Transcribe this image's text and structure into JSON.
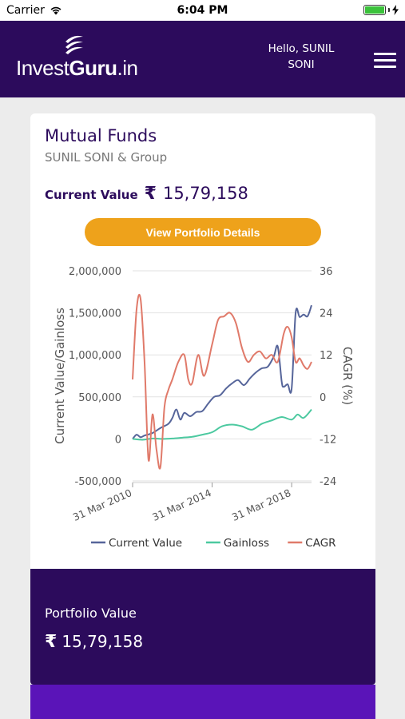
{
  "status_bar": {
    "carrier": "Carrier",
    "time": "6:04 PM",
    "wifi_icon": "wifi-icon",
    "battery_icon": "battery-icon",
    "battery_level": 1.0
  },
  "header": {
    "logo_light": "Invest",
    "logo_bold": "Guru",
    "logo_suffix": ".in",
    "greeting_line1": "Hello, SUNIL",
    "greeting_line2": "SONI",
    "menu_icon": "hamburger-menu-icon"
  },
  "card": {
    "title": "Mutual Funds",
    "subtitle": "SUNIL SONI & Group",
    "current_value_label": "Current Value",
    "currency_symbol": "₹",
    "current_value": "15,79,158",
    "button_label": "View Portfolio Details"
  },
  "portfolio": {
    "label": "Portfolio Value",
    "currency_symbol": "₹",
    "value": "15,79,158"
  },
  "colors": {
    "brand_purple": "#2c0b5c",
    "accent_orange": "#eea21b",
    "current_value": "#56659a",
    "gainloss": "#4cc9a0",
    "cagr": "#e07a6a"
  },
  "chart_data": {
    "type": "line",
    "ylabel": "Current Value/Gainloss",
    "y2label": "CAGR (%)",
    "ylim": [
      -500000,
      2000000
    ],
    "y2lim": [
      -24,
      36
    ],
    "yticks": [
      "2,000,000",
      "1,500,000",
      "1,000,000",
      "500,000",
      "0",
      "-500,000"
    ],
    "y2ticks": [
      "36",
      "24",
      "12",
      "0",
      "-12",
      "-24"
    ],
    "xlim": [
      2010.0,
      2019.0
    ],
    "xticks": [
      {
        "value": 2010.0,
        "label": "31 Mar 2010"
      },
      {
        "value": 2014.0,
        "label": "31 Mar 2014"
      },
      {
        "value": 2018.0,
        "label": "31 Mar 2018"
      }
    ],
    "grid": true,
    "legend_position": "bottom",
    "series": [
      {
        "name": "Current Value",
        "axis": "left",
        "color": "#56659a",
        "x": [
          2010.0,
          2010.2,
          2010.4,
          2010.6,
          2011.0,
          2011.4,
          2011.8,
          2012.0,
          2012.2,
          2012.4,
          2012.6,
          2012.9,
          2013.2,
          2013.5,
          2013.8,
          2014.1,
          2014.4,
          2014.7,
          2015.0,
          2015.3,
          2015.6,
          2015.9,
          2016.2,
          2016.5,
          2016.8,
          2017.1,
          2017.3,
          2017.5,
          2017.6,
          2017.8,
          2018.0,
          2018.2,
          2018.4,
          2018.6,
          2018.8,
          2019.0
        ],
        "y": [
          0,
          50000,
          20000,
          40000,
          70000,
          130000,
          180000,
          250000,
          350000,
          230000,
          310000,
          270000,
          320000,
          330000,
          420000,
          500000,
          520000,
          600000,
          660000,
          700000,
          640000,
          720000,
          790000,
          840000,
          860000,
          980000,
          1100000,
          680000,
          620000,
          650000,
          600000,
          1500000,
          1450000,
          1480000,
          1460000,
          1590000
        ]
      },
      {
        "name": "Gainloss",
        "axis": "left",
        "color": "#4cc9a0",
        "x": [
          2010.0,
          2010.5,
          2011.0,
          2011.5,
          2012.0,
          2012.5,
          2013.0,
          2013.5,
          2014.0,
          2014.5,
          2015.0,
          2015.5,
          2016.0,
          2016.5,
          2017.0,
          2017.5,
          2018.0,
          2018.3,
          2018.6,
          2019.0
        ],
        "y": [
          0,
          -10000,
          5000,
          0,
          5000,
          15000,
          25000,
          50000,
          80000,
          150000,
          170000,
          150000,
          110000,
          180000,
          220000,
          260000,
          230000,
          290000,
          250000,
          350000
        ]
      },
      {
        "name": "CAGR",
        "axis": "right",
        "color": "#e07a6a",
        "x": [
          2010.0,
          2010.2,
          2010.4,
          2010.6,
          2010.8,
          2011.0,
          2011.2,
          2011.4,
          2011.6,
          2011.8,
          2012.0,
          2012.3,
          2012.6,
          2012.8,
          2013.0,
          2013.3,
          2013.6,
          2014.0,
          2014.3,
          2014.6,
          2014.9,
          2015.2,
          2015.5,
          2015.8,
          2016.1,
          2016.4,
          2016.7,
          2017.0,
          2017.3,
          2017.6,
          2017.8,
          2018.0,
          2018.2,
          2018.4,
          2018.6,
          2018.8,
          2019.0
        ],
        "y": [
          5,
          25,
          28,
          10,
          -18,
          -5,
          -15,
          -20,
          -3,
          2,
          5,
          10,
          12,
          5,
          4,
          12,
          6,
          15,
          22,
          23,
          24,
          21,
          14,
          10,
          12,
          13,
          11,
          12,
          10,
          18,
          20,
          17,
          10,
          11,
          9,
          8,
          10
        ]
      }
    ]
  }
}
